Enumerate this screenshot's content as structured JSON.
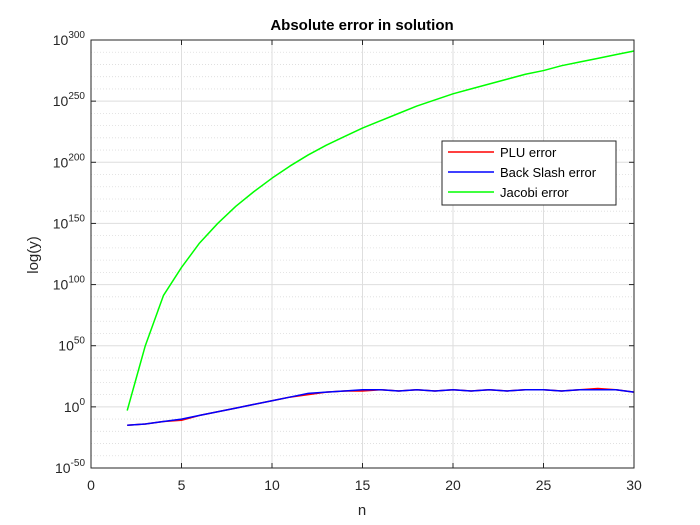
{
  "chart_data": {
    "type": "line",
    "title": "Absolute error in solution",
    "xlabel": "n",
    "ylabel": "log(y)",
    "xlim": [
      0,
      30
    ],
    "ylim": [
      -50,
      300
    ],
    "y_scale": "log10",
    "x_ticks": [
      "0",
      "5",
      "10",
      "15",
      "20",
      "25",
      "30"
    ],
    "y_tick_base": "10",
    "y_tick_exponents": [
      "-50",
      "0",
      "50",
      "100",
      "150",
      "200",
      "250",
      "300"
    ],
    "grid": true,
    "legend_position": "right",
    "series": [
      {
        "name": "PLU error",
        "color": "#ff0000",
        "x": [
          2,
          3,
          4,
          5,
          6,
          7,
          8,
          9,
          10,
          11,
          12,
          13,
          14,
          15,
          16,
          17,
          18,
          19,
          20,
          21,
          22,
          23,
          24,
          25,
          26,
          27,
          28,
          29,
          30
        ],
        "log10_y": [
          -15,
          -14,
          -12,
          -11,
          -7,
          -4,
          -1,
          2,
          5,
          8,
          10,
          12,
          13,
          13,
          14,
          13,
          14,
          13,
          14,
          13,
          14,
          13,
          14,
          14,
          13,
          14,
          15,
          14,
          12
        ]
      },
      {
        "name": "Back Slash error",
        "color": "#0000ff",
        "x": [
          2,
          3,
          4,
          5,
          6,
          7,
          8,
          9,
          10,
          11,
          12,
          13,
          14,
          15,
          16,
          17,
          18,
          19,
          20,
          21,
          22,
          23,
          24,
          25,
          26,
          27,
          28,
          29,
          30
        ],
        "log10_y": [
          -15,
          -14,
          -12,
          -10,
          -7,
          -4,
          -1,
          2,
          5,
          8,
          11,
          12,
          13,
          14,
          14,
          13,
          14,
          13,
          14,
          13,
          14,
          13,
          14,
          14,
          13,
          14,
          14,
          14,
          12
        ]
      },
      {
        "name": "Jacobi error",
        "color": "#00ff00",
        "x": [
          2,
          3,
          4,
          5,
          6,
          7,
          8,
          9,
          10,
          11,
          12,
          13,
          14,
          15,
          16,
          17,
          18,
          19,
          20,
          21,
          22,
          23,
          24,
          25,
          26,
          27,
          28,
          29,
          30
        ],
        "log10_y": [
          -3,
          50,
          91,
          114,
          134,
          150,
          164,
          176,
          187,
          197,
          206,
          214,
          221,
          228,
          234,
          240,
          246,
          251,
          256,
          260,
          264,
          268,
          272,
          275,
          279,
          282,
          285,
          288,
          291
        ]
      }
    ]
  }
}
